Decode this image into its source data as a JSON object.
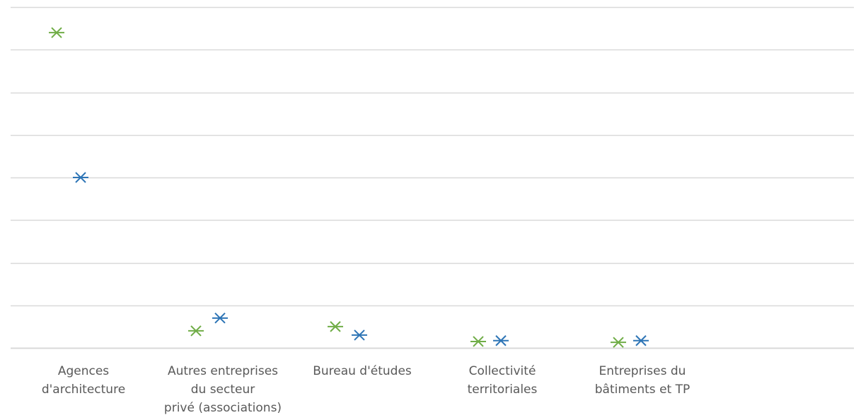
{
  "chart_data": {
    "type": "scatter",
    "categories": [
      "Agences d'architecture",
      "Autres entreprises du secteur privé (associations)",
      "Bureau d'études",
      "Collectivité territoriales",
      "Entreprises du bâtiments et TP"
    ],
    "category_label_lines": [
      [
        "Agences",
        "d'architecture"
      ],
      [
        "Autres entreprises",
        "du secteur",
        "privé (associations)"
      ],
      [
        "Bureau d'études"
      ],
      [
        "Collectivité",
        "territoriales"
      ],
      [
        "Entreprises du",
        "bâtiments et TP"
      ]
    ],
    "series": [
      {
        "color": "#70ad47",
        "marker": "x",
        "values": [
          7.4,
          0.4,
          0.5,
          0.15,
          0.13
        ]
      },
      {
        "color": "#2e75b6",
        "marker": "x",
        "values": [
          4.0,
          0.7,
          0.3,
          0.17,
          0.17
        ]
      }
    ],
    "ylim": [
      0,
      8
    ],
    "grid": true,
    "legend": "none",
    "axis_tick_labels_shown": false,
    "colors": {
      "gridline": "#d9d9d9",
      "axis_text": "#595959"
    }
  }
}
